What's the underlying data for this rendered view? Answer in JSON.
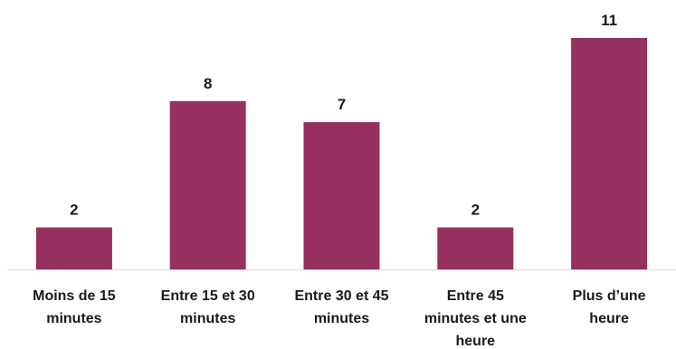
{
  "chart_data": {
    "type": "bar",
    "categories": [
      [
        "Moins de 15",
        "minutes"
      ],
      [
        "Entre 15 et 30",
        "minutes"
      ],
      [
        "Entre 30 et 45",
        "minutes"
      ],
      [
        "Entre 45",
        "minutes et une",
        "heure"
      ],
      [
        "Plus d’une",
        "heure"
      ]
    ],
    "values": [
      2,
      8,
      7,
      2,
      11
    ],
    "ylim": [
      0,
      11
    ],
    "grid": false,
    "bar_color": "#96305f",
    "axis_color": "#d9d9d9"
  }
}
